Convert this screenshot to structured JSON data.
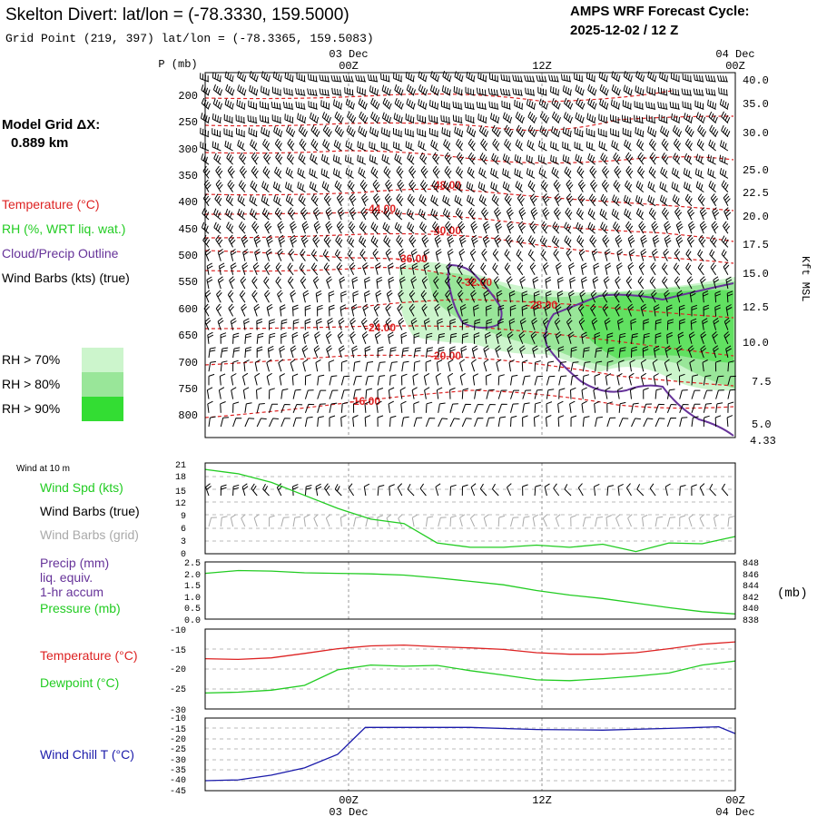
{
  "header": {
    "title": "Skelton Divert:  lat/lon = (-78.3330, 159.5000)",
    "subtitle": "Grid Point (219, 397) lat/lon = (-78.3365, 159.5083)",
    "forecast_title": "AMPS WRF Forecast Cycle:",
    "forecast_cycle": "2025-12-02 / 12  Z",
    "model_grid_title": "Model Grid ΔX:",
    "model_grid_value": "0.889 km"
  },
  "time_axis": {
    "top_dates": [
      "03 Dec",
      "04 Dec"
    ],
    "top_times": [
      "00Z",
      "12Z",
      "00Z"
    ],
    "bottom_times": [
      "00Z",
      "12Z",
      "00Z"
    ],
    "bottom_dates": [
      "03 Dec",
      "04 Dec"
    ]
  },
  "legend": {
    "temperature": "Temperature (°C)",
    "rh": "RH (%, WRT liq. wat.)",
    "cloud": "Cloud/Precip Outline",
    "wind": "Wind Barbs (kts) (true)",
    "rh_levels": [
      {
        "label": "RH > 70%",
        "color": "#ccf5cc"
      },
      {
        "label": "RH > 80%",
        "color": "#99e699"
      },
      {
        "label": "RH > 90%",
        "color": "#33dd33"
      }
    ]
  },
  "colors": {
    "temperature": "#dd2222",
    "rh_line": "#22cc22",
    "cloud": "#663399",
    "wind": "#000000",
    "grid_wind": "#aaaaaa",
    "precip": "#663399",
    "windchill": "#1a1aaa"
  },
  "chart_data": [
    {
      "type": "contour",
      "name": "cross_section",
      "y_axis_label": "P (mb)",
      "pressure_ticks": [
        "200",
        "250",
        "300",
        "350",
        "400",
        "450",
        "500",
        "550",
        "600",
        "650",
        "700",
        "750",
        "800"
      ],
      "right_axis_label": "Kft MSL",
      "height_ticks": [
        "40.0",
        "35.0",
        "30.0",
        "25.0",
        "22.5",
        "20.0",
        "17.5",
        "15.0",
        "12.5",
        "10.0",
        "7.5",
        "5.0",
        "4.33"
      ],
      "temperature_labels": [
        "-48.00",
        "-44.00",
        "-40.00",
        "-36.00",
        "-32.00",
        "-28.00",
        "-24.00",
        "-20.00",
        "-16.00"
      ]
    },
    {
      "type": "line",
      "name": "wind_10m",
      "section_label": "Wind at 10 m",
      "label_speed": "Wind Spd (kts)",
      "label_barbs_true": "Wind Barbs (true)",
      "label_barbs_grid": "Wind Barbs (grid)",
      "y_ticks": [
        "21",
        "18",
        "15",
        "12",
        "9",
        "6",
        "3",
        "0"
      ],
      "ylim": [
        0,
        21
      ],
      "x_hours": [
        0,
        3,
        6,
        9,
        12,
        15,
        18,
        21,
        24,
        27,
        30,
        33,
        36,
        39,
        42,
        45,
        48
      ],
      "speed": [
        19.5,
        18.5,
        16.5,
        13.5,
        10.5,
        8,
        7,
        2.5,
        1.5,
        1.5,
        2,
        1.5,
        2.2,
        0.5,
        2.5,
        2.3,
        4
      ]
    },
    {
      "type": "line",
      "name": "precip_pressure",
      "label_precip": "Precip (mm)",
      "label_liq": "liq. equiv.",
      "label_accum": "1-hr accum",
      "label_pressure": "Pressure (mb)",
      "label_unit": "(mb)",
      "left_ticks": [
        "2.5",
        "2.0",
        "1.5",
        "1.0",
        "0.5",
        "0.0"
      ],
      "right_ticks": [
        "848",
        "846",
        "844",
        "842",
        "840",
        "838"
      ],
      "ylim_right": [
        838,
        848
      ],
      "x_hours": [
        0,
        3,
        6,
        9,
        12,
        15,
        18,
        21,
        24,
        27,
        30,
        33,
        36,
        39,
        42,
        45,
        48
      ],
      "pressure": [
        846.0,
        846.5,
        846.4,
        846.1,
        846.0,
        845.9,
        845.7,
        845.2,
        844.6,
        844.0,
        843.0,
        842.2,
        841.6,
        840.8,
        840.0,
        839.3,
        838.9
      ]
    },
    {
      "type": "line",
      "name": "temp_dewpoint",
      "label_temp": "Temperature (°C)",
      "label_dew": "Dewpoint (°C)",
      "y_ticks": [
        "-10",
        "-15",
        "-20",
        "-25",
        "-30"
      ],
      "ylim": [
        -30,
        -10
      ],
      "x_hours": [
        0,
        3,
        6,
        9,
        12,
        15,
        18,
        21,
        24,
        27,
        30,
        33,
        36,
        39,
        42,
        45,
        48
      ],
      "temperature": [
        -17.4,
        -17.6,
        -17.2,
        -16.1,
        -14.9,
        -14.2,
        -14.0,
        -14.4,
        -14.7,
        -15.1,
        -15.9,
        -16.3,
        -16.3,
        -15.9,
        -14.9,
        -13.8,
        -13.2
      ],
      "dewpoint": [
        -26.0,
        -25.8,
        -25.3,
        -24.1,
        -20.2,
        -19.0,
        -19.3,
        -19.1,
        -20.4,
        -21.5,
        -22.7,
        -22.9,
        -22.4,
        -21.8,
        -21.0,
        -19.0,
        -18.0
      ]
    },
    {
      "type": "line",
      "name": "windchill",
      "label": "Wind Chill T (°C)",
      "y_ticks": [
        "-10",
        "-15",
        "-20",
        "-25",
        "-30",
        "-35",
        "-40",
        "-45"
      ],
      "ylim": [
        -45,
        -10
      ],
      "x_hours": [
        0,
        3,
        6,
        9,
        12,
        14.5,
        18,
        24,
        30,
        36,
        42,
        46.5,
        48
      ],
      "windchill": [
        -40.2,
        -39.8,
        -37.5,
        -34.0,
        -27.5,
        -14.5,
        -14.5,
        -14.5,
        -15.5,
        -15.8,
        -15.0,
        -14.2,
        -17.5
      ]
    }
  ]
}
